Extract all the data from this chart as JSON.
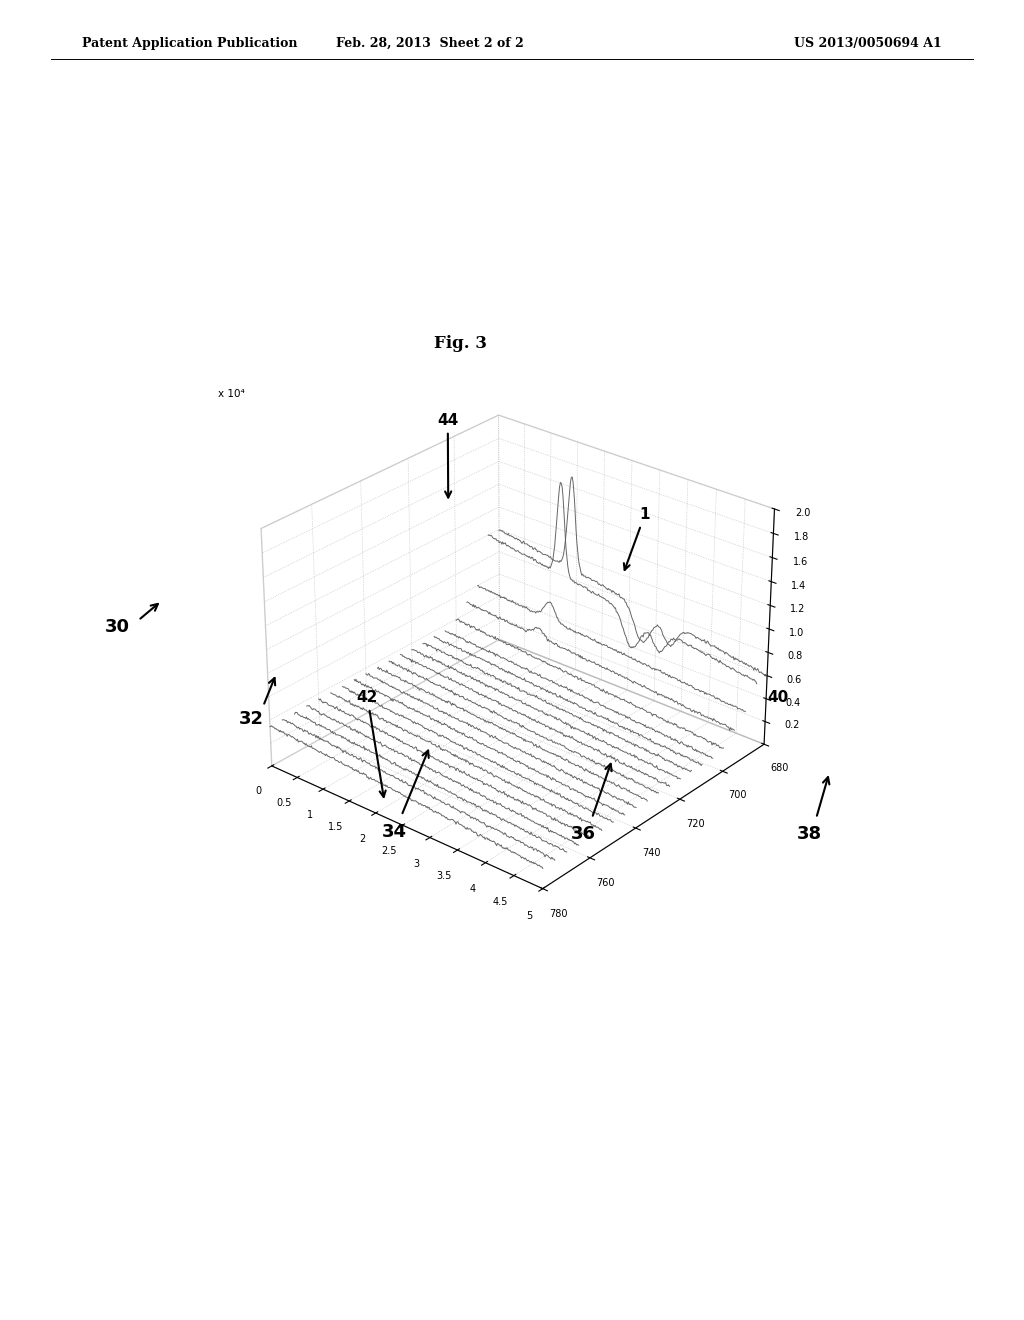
{
  "fig_label": "Fig. 3",
  "header_left": "Patent Application Publication",
  "header_center": "Feb. 28, 2013  Sheet 2 of 2",
  "header_right": "US 2013/0050694 A1",
  "y_label_exp": "x 10⁴",
  "y_ticks": [
    0.2,
    0.4,
    0.6,
    0.8,
    1.0,
    1.2,
    1.4,
    1.6,
    1.8,
    2.0
  ],
  "x_ticks": [
    0,
    0.5,
    1,
    1.5,
    2,
    2.5,
    3,
    3.5,
    4,
    4.5,
    5
  ],
  "wl_ticks": [
    680,
    700,
    720,
    740,
    760,
    780
  ],
  "background_color": "#ffffff",
  "line_color": "#555555",
  "elev": 28,
  "azim": -50
}
